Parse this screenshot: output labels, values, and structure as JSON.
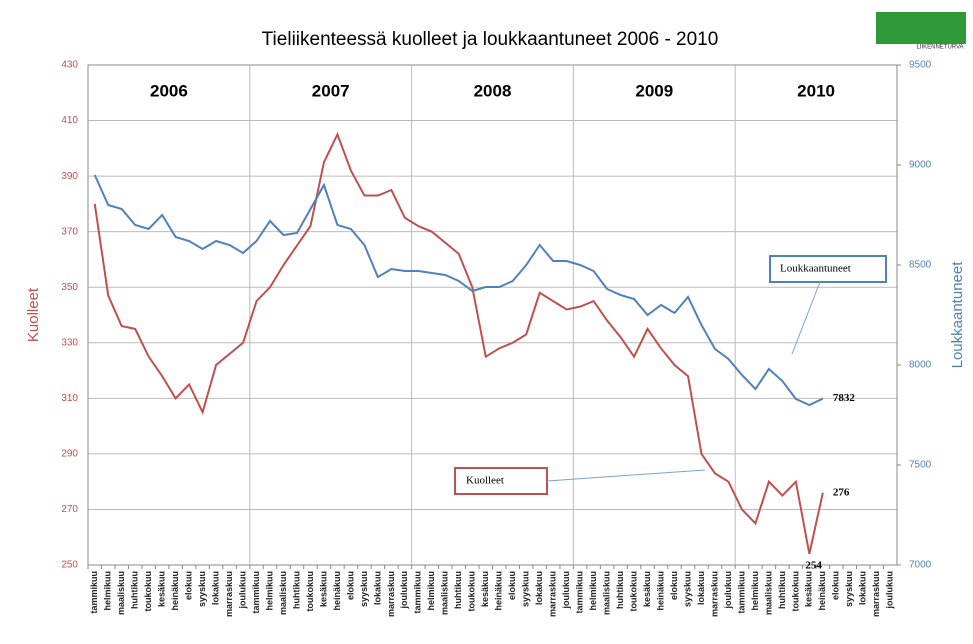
{
  "chart_data": {
    "type": "line",
    "title": "Tieliikenteessä kuolleet ja loukkaantuneet 2006 - 2010",
    "logo_text": "LIIKENNETURVA",
    "y_label": "Kuolleet",
    "y2_label": "Loukkaantuneet",
    "year_labels": [
      "2006",
      "2007",
      "2008",
      "2009",
      "2010"
    ],
    "categories": [
      "tammikuu",
      "helmikuu",
      "maaliskuu",
      "huhtikuu",
      "toukokuu",
      "kesäkuu",
      "heinäkuu",
      "elokuu",
      "syyskuu",
      "lokakuu",
      "marraskuu",
      "joulukuu",
      "tammikuu",
      "helmikuu",
      "maaliskuu",
      "huhtikuu",
      "toukokuu",
      "kesäkuu",
      "heinäkuu",
      "elokuu",
      "syyskuu",
      "lokakuu",
      "marraskuu",
      "joulukuu",
      "tammikuu",
      "helmikuu",
      "maaliskuu",
      "huhtikuu",
      "toukokuu",
      "kesäkuu",
      "heinäkuu",
      "elokuu",
      "syyskuu",
      "lokakuu",
      "marraskuu",
      "joulukuu",
      "tammikuu",
      "helmikuu",
      "maaliskuu",
      "huhtikuu",
      "toukokuu",
      "kesäkuu",
      "heinäkuu",
      "elokuu",
      "syyskuu",
      "lokakuu",
      "marraskuu",
      "joulukuu",
      "tammikuu",
      "helmikuu",
      "maaliskuu",
      "huhtikuu",
      "toukokuu",
      "kesäkuu",
      "heinäkuu",
      "elokuu",
      "syyskuu",
      "lokakuu",
      "marraskuu",
      "joulukuu"
    ],
    "series": [
      {
        "name": "Kuolleet",
        "color": "#c0504d",
        "axis": "y",
        "labeled": [
          53,
          54
        ],
        "values": [
          380,
          347,
          336,
          335,
          325,
          318,
          310,
          315,
          305,
          322,
          326,
          330,
          345,
          350,
          358,
          365,
          372,
          395,
          405,
          392,
          383,
          383,
          385,
          375,
          372,
          370,
          366,
          362,
          350,
          325,
          328,
          330,
          333,
          348,
          345,
          342,
          343,
          345,
          338,
          332,
          325,
          335,
          328,
          322,
          318,
          290,
          283,
          280,
          270,
          265,
          280,
          275,
          280,
          254,
          276,
          null,
          null,
          null,
          null,
          null
        ]
      },
      {
        "name": "Loukkaantuneet",
        "color": "#4f81bd",
        "axis": "y2",
        "labeled": [
          54
        ],
        "values": [
          8950,
          8800,
          8780,
          8700,
          8680,
          8750,
          8640,
          8620,
          8580,
          8620,
          8600,
          8560,
          8620,
          8720,
          8650,
          8660,
          8780,
          8900,
          8700,
          8680,
          8600,
          8440,
          8480,
          8470,
          8470,
          8460,
          8450,
          8420,
          8370,
          8390,
          8390,
          8420,
          8500,
          8600,
          8520,
          8520,
          8500,
          8470,
          8380,
          8350,
          8330,
          8250,
          8300,
          8260,
          8340,
          8200,
          8080,
          8030,
          7950,
          7880,
          7980,
          7920,
          7830,
          7800,
          7832,
          null,
          null,
          null,
          null,
          null
        ]
      }
    ],
    "ylim": [
      250,
      430
    ],
    "yticks": [
      250,
      270,
      290,
      310,
      330,
      350,
      370,
      390,
      410,
      430
    ],
    "y2lim": [
      7000,
      9500
    ],
    "y2ticks": [
      7000,
      7500,
      8000,
      8500,
      9000,
      9500
    ],
    "grid": true
  }
}
